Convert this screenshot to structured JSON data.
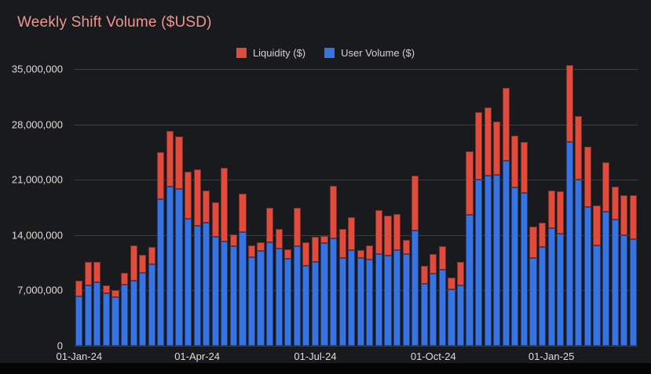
{
  "page": {
    "background": "#191a1e"
  },
  "title": "Weekly Shift Volume ($USD)",
  "title_color": "#f0968d",
  "legend": [
    {
      "label": "Liquidity ($)",
      "color": "#e04b3c"
    },
    {
      "label": "User Volume ($)",
      "color": "#3873e3"
    }
  ],
  "chart_data": {
    "type": "bar",
    "stacked": true,
    "title": "Weekly Shift Volume ($USD)",
    "xlabel": "",
    "ylabel": "",
    "ylim": [
      0,
      35000000
    ],
    "grid": true,
    "legend_position": "top",
    "ytick_labels": [
      "0",
      "7,000,000",
      "14,000,000",
      "21,000,000",
      "28,000,000",
      "35,000,000"
    ],
    "xtick_indices": [
      0,
      13,
      26,
      39,
      52
    ],
    "xtick_labels": [
      "01-Jan-24",
      "01-Apr-24",
      "01-Jul-24",
      "01-Oct-24",
      "01-Jan-25"
    ],
    "categories": [
      "01-Jan-24",
      "08-Jan-24",
      "15-Jan-24",
      "22-Jan-24",
      "29-Jan-24",
      "05-Feb-24",
      "12-Feb-24",
      "19-Feb-24",
      "26-Feb-24",
      "04-Mar-24",
      "11-Mar-24",
      "18-Mar-24",
      "25-Mar-24",
      "01-Apr-24",
      "08-Apr-24",
      "15-Apr-24",
      "22-Apr-24",
      "29-Apr-24",
      "06-May-24",
      "13-May-24",
      "20-May-24",
      "27-May-24",
      "03-Jun-24",
      "10-Jun-24",
      "17-Jun-24",
      "24-Jun-24",
      "01-Jul-24",
      "08-Jul-24",
      "15-Jul-24",
      "22-Jul-24",
      "29-Jul-24",
      "05-Aug-24",
      "12-Aug-24",
      "19-Aug-24",
      "26-Aug-24",
      "02-Sep-24",
      "09-Sep-24",
      "16-Sep-24",
      "23-Sep-24",
      "30-Sep-24",
      "07-Oct-24",
      "14-Oct-24",
      "21-Oct-24",
      "28-Oct-24",
      "04-Nov-24",
      "11-Nov-24",
      "18-Nov-24",
      "25-Nov-24",
      "02-Dec-24",
      "09-Dec-24",
      "16-Dec-24",
      "23-Dec-24",
      "30-Dec-24",
      "06-Jan-25",
      "13-Jan-25",
      "20-Jan-25",
      "27-Jan-25",
      "03-Feb-25",
      "10-Feb-25",
      "17-Feb-25",
      "24-Feb-25",
      "03-Mar-25"
    ],
    "series": [
      {
        "name": "User Volume ($)",
        "color": "#3873e3",
        "values": [
          6200000,
          7600000,
          8000000,
          6600000,
          6100000,
          7700000,
          8200000,
          9200000,
          10300000,
          18500000,
          20100000,
          19800000,
          16100000,
          15200000,
          15600000,
          13800000,
          13200000,
          12600000,
          14400000,
          11200000,
          12000000,
          13100000,
          12300000,
          11000000,
          12600000,
          10100000,
          10600000,
          13000000,
          13600000,
          11100000,
          12100000,
          11100000,
          10900000,
          11600000,
          11400000,
          12100000,
          11600000,
          14600000,
          7800000,
          9100000,
          9600000,
          7100000,
          7600000,
          16600000,
          21000000,
          21500000,
          21600000,
          23400000,
          20000000,
          19300000,
          11100000,
          12500000,
          14900000,
          14200000,
          25800000,
          21000000,
          17600000,
          12700000,
          17000000,
          16000000,
          14000000,
          13500000
        ]
      },
      {
        "name": "Liquidity ($)",
        "color": "#e04b3c",
        "values": [
          2000000,
          3000000,
          2600000,
          1000000,
          900000,
          1500000,
          4500000,
          2300000,
          2200000,
          6000000,
          7100000,
          6700000,
          5900000,
          7100000,
          4000000,
          4300000,
          9300000,
          1500000,
          4800000,
          1500000,
          1100000,
          4400000,
          2500000,
          1200000,
          4900000,
          3000000,
          3200000,
          900000,
          6600000,
          3700000,
          4200000,
          1000000,
          1800000,
          5600000,
          5100000,
          4600000,
          1800000,
          6900000,
          2300000,
          2500000,
          3000000,
          1500000,
          3000000,
          8000000,
          8500000,
          8600000,
          6800000,
          9200000,
          6600000,
          6500000,
          4000000,
          3100000,
          4700000,
          5300000,
          9700000,
          8100000,
          7600000,
          5100000,
          6200000,
          4100000,
          5000000,
          5500000
        ]
      }
    ]
  }
}
